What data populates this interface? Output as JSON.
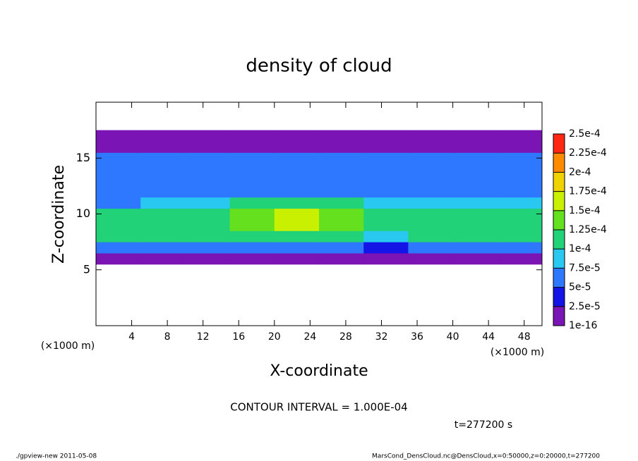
{
  "chart_data": {
    "type": "heatmap",
    "title": "density of cloud",
    "x_label": "X-coordinate",
    "y_label": "Z-coordinate",
    "x_unit": "(×1000 m)",
    "y_unit": "(×1000 m)",
    "x": [
      2.5,
      7.5,
      12.5,
      17.5,
      22.5,
      27.5,
      32.5,
      37.5,
      42.5,
      47.5
    ],
    "y": [
      6,
      7,
      8,
      9,
      10,
      11,
      12,
      13,
      14,
      15,
      16,
      17
    ],
    "z": [
      [
        2e-05,
        2e-05,
        2e-05,
        2e-05,
        2e-05,
        2e-05,
        2e-05,
        2e-05,
        2e-05,
        2e-05
      ],
      [
        6e-05,
        6e-05,
        6e-05,
        7e-05,
        7e-05,
        6e-05,
        4e-05,
        6e-05,
        6e-05,
        6e-05
      ],
      [
        0.0001,
        0.0001,
        0.0001,
        0.00011,
        0.00012,
        0.00011,
        8e-05,
        0.0001,
        0.0001,
        0.0001
      ],
      [
        0.00012,
        0.00012,
        0.00012,
        0.00014,
        0.00016,
        0.00014,
        0.00011,
        0.00012,
        0.00012,
        0.00012
      ],
      [
        0.00011,
        0.0001,
        0.00011,
        0.00013,
        0.00017,
        0.00013,
        0.00011,
        0.00011,
        0.00011,
        0.00011
      ],
      [
        7e-05,
        8e-05,
        8e-05,
        0.0001,
        0.00012,
        0.0001,
        8e-05,
        8e-05,
        8e-05,
        8e-05
      ],
      [
        6e-05,
        6e-05,
        6e-05,
        7e-05,
        7e-05,
        7e-05,
        6e-05,
        6e-05,
        6e-05,
        6e-05
      ],
      [
        6e-05,
        6e-05,
        6e-05,
        6e-05,
        6e-05,
        6e-05,
        6e-05,
        6e-05,
        6e-05,
        6e-05
      ],
      [
        5e-05,
        6e-05,
        6e-05,
        6e-05,
        6e-05,
        6e-05,
        6e-05,
        6e-05,
        6e-05,
        5e-05
      ],
      [
        5e-05,
        5e-05,
        5e-05,
        5e-05,
        5e-05,
        5e-05,
        5e-05,
        5e-05,
        5e-05,
        5e-05
      ],
      [
        2e-05,
        2e-05,
        2e-05,
        2e-05,
        2e-05,
        2e-05,
        2e-05,
        2e-05,
        2e-05,
        2e-05
      ],
      [
        1e-05,
        1e-05,
        1e-05,
        1e-05,
        1e-05,
        1e-05,
        1e-05,
        1e-05,
        1e-05,
        1e-05
      ]
    ],
    "xlim": [
      0,
      50
    ],
    "ylim": [
      0,
      20
    ],
    "xticks": [
      4,
      8,
      12,
      16,
      20,
      24,
      28,
      32,
      36,
      40,
      44,
      48
    ],
    "yticks": [
      5,
      10,
      15
    ],
    "colorbar": {
      "ticks": [
        {
          "value": 1e-16,
          "label": "1e-16"
        },
        {
          "value": 2.5e-05,
          "label": "2.5e-5"
        },
        {
          "value": 5e-05,
          "label": "5e-5"
        },
        {
          "value": 7.5e-05,
          "label": "7.5e-5"
        },
        {
          "value": 0.0001,
          "label": "1e-4"
        },
        {
          "value": 0.000125,
          "label": "1.25e-4"
        },
        {
          "value": 0.00015,
          "label": "1.5e-4"
        },
        {
          "value": 0.000175,
          "label": "1.75e-4"
        },
        {
          "value": 0.0002,
          "label": "2e-4"
        },
        {
          "value": 0.000225,
          "label": "2.25e-4"
        },
        {
          "value": 0.00025,
          "label": "2.5e-4"
        }
      ],
      "colors": [
        "#7a14b4",
        "#1414e6",
        "#2e78ff",
        "#28c8f0",
        "#22d278",
        "#64e01e",
        "#c8f000",
        "#f0d200",
        "#ff8c00",
        "#ff2814"
      ]
    },
    "contour_interval": "CONTOUR INTERVAL = 1.000E-04",
    "time_label": "t=277200 s",
    "footer_left": "./gpview-new  2011-05-08",
    "footer_right": "MarsCond_DensCloud.nc@DensCloud,x=0:50000,z=0:20000,t=277200"
  }
}
